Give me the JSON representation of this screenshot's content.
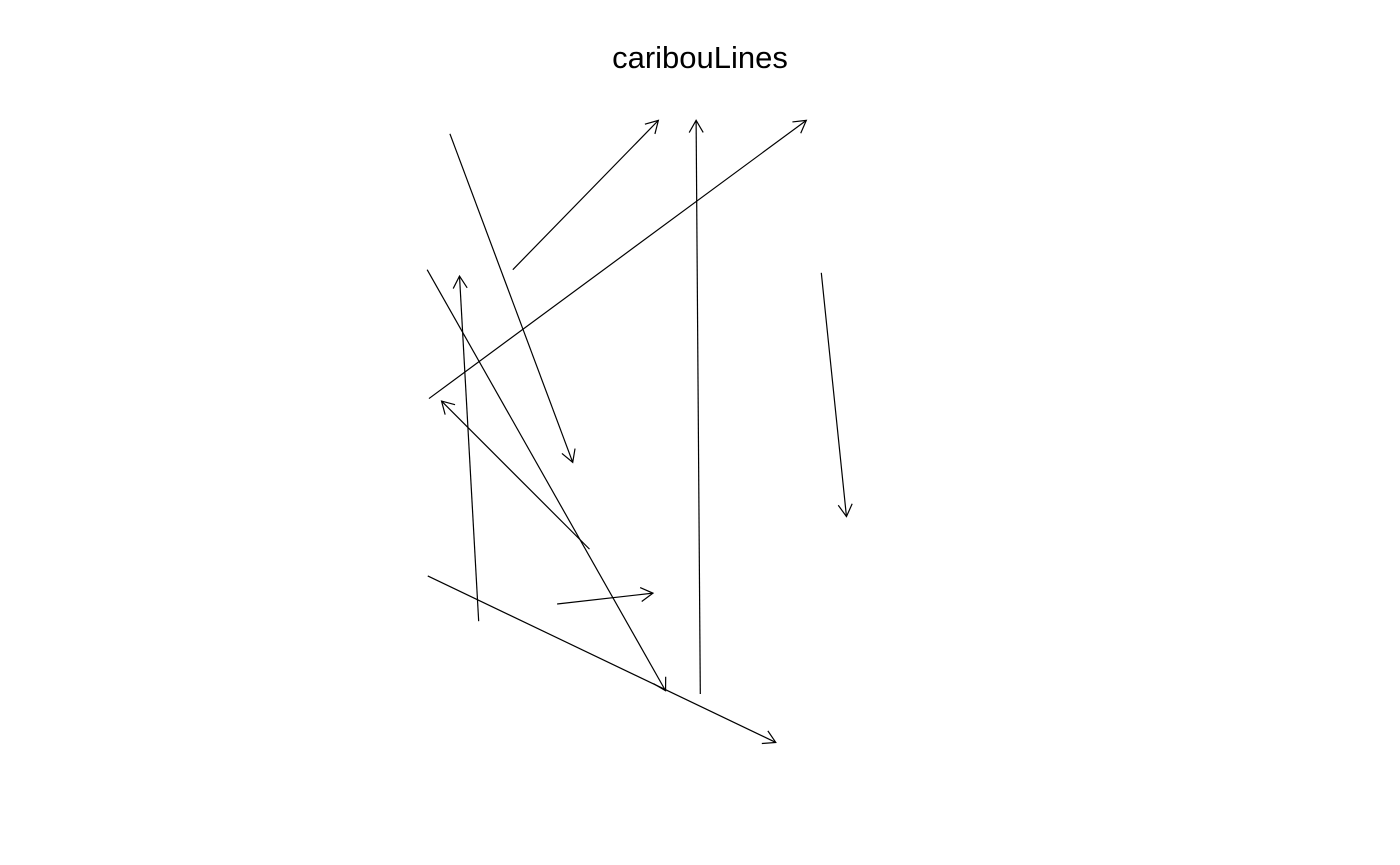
{
  "chart_data": {
    "type": "line",
    "title": "caribouLines",
    "xlabel": "",
    "ylabel": "",
    "axes_shown": false,
    "grid": false,
    "legend": "none",
    "xlim": [
      0,
      1
    ],
    "ylim": [
      0,
      1
    ],
    "line_color": "#000000",
    "segments": [
      {
        "x0": 0.08,
        "y0": 0.969,
        "x1": 0.285,
        "y1": 0.454,
        "arrow": true
      },
      {
        "x0": 0.185,
        "y0": 0.756,
        "x1": 0.428,
        "y1": 0.99,
        "arrow": true
      },
      {
        "x0": 0.498,
        "y0": 0.091,
        "x1": 0.491,
        "y1": 0.99,
        "arrow": true
      },
      {
        "x0": 0.045,
        "y0": 0.554,
        "x1": 0.675,
        "y1": 0.99,
        "arrow": true
      },
      {
        "x0": 0.042,
        "y0": 0.756,
        "x1": 0.44,
        "y1": 0.096,
        "arrow": true
      },
      {
        "x0": 0.128,
        "y0": 0.205,
        "x1": 0.096,
        "y1": 0.746,
        "arrow": true
      },
      {
        "x0": 0.313,
        "y0": 0.318,
        "x1": 0.066,
        "y1": 0.55,
        "arrow": true
      },
      {
        "x0": 0.043,
        "y0": 0.276,
        "x1": 0.624,
        "y1": 0.015,
        "arrow": true
      },
      {
        "x0": 0.259,
        "y0": 0.232,
        "x1": 0.419,
        "y1": 0.249,
        "arrow": true
      },
      {
        "x0": 0.7,
        "y0": 0.751,
        "x1": 0.742,
        "y1": 0.369,
        "arrow": true
      }
    ]
  }
}
